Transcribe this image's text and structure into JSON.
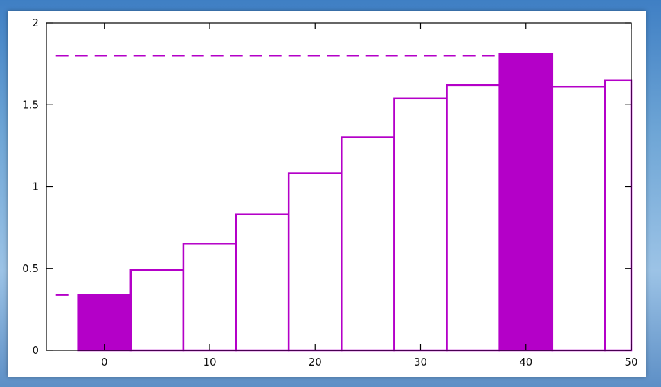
{
  "colors": {
    "accent": "#b400c8",
    "axis": "#000000"
  },
  "chart_data": {
    "type": "bar",
    "title": "",
    "xlabel": "",
    "ylabel": "",
    "x": [
      0,
      5,
      10,
      15,
      20,
      25,
      30,
      35,
      40,
      45,
      50
    ],
    "values": [
      0.34,
      0.49,
      0.65,
      0.83,
      1.08,
      1.3,
      1.54,
      1.62,
      1.81,
      1.61,
      1.65
    ],
    "highlighted": [
      0,
      40
    ],
    "bar_width": 5,
    "xlim": [
      -5.5,
      50
    ],
    "ylim": [
      0,
      2
    ],
    "x_ticks": [
      "0",
      "10",
      "20",
      "30",
      "40",
      "50"
    ],
    "y_ticks": [
      "0",
      "0.5",
      "1",
      "1.5",
      "2"
    ],
    "reference_lines": [
      {
        "y": 0.34,
        "x_range": [
          -4.6,
          -3.4
        ],
        "style": "dashed"
      },
      {
        "y": 1.8,
        "x_range": [
          -4.6,
          37.5
        ],
        "style": "dashed"
      }
    ],
    "grid": false,
    "legend": "none"
  }
}
